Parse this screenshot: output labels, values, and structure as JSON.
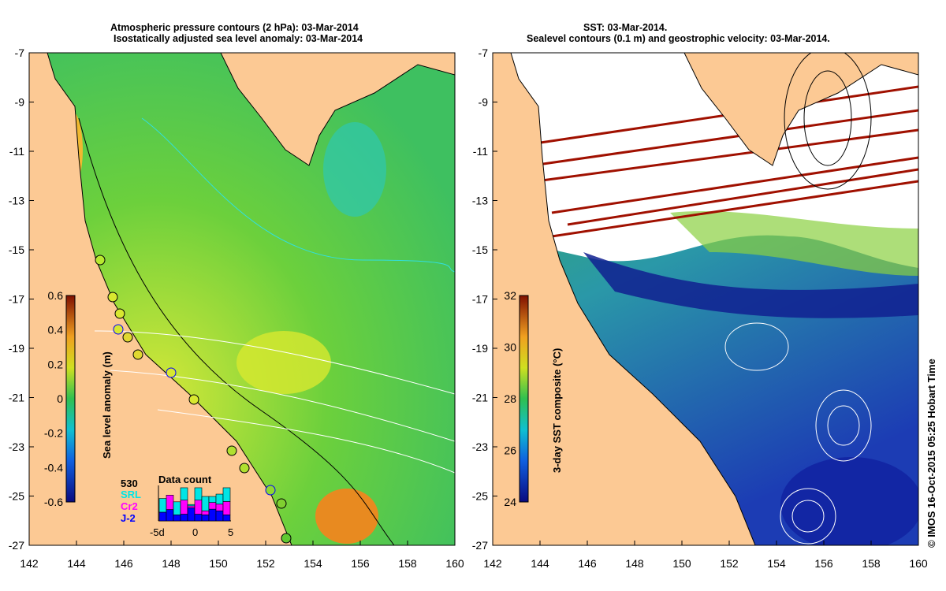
{
  "left_panel": {
    "title_line1": "Atmospheric pressure contours (2 hPa): 03-Mar-2014",
    "title_line2": "Isostatically adjusted sea level anomaly: 03-Mar-2014",
    "colorbar": {
      "label": "Sea level anomaly (m)",
      "ticks": [
        "0.6",
        "0.4",
        "0.2",
        "0",
        "-0.2",
        "-0.4",
        "-0.6"
      ],
      "range": [
        -0.6,
        0.6
      ]
    },
    "legend": {
      "max_count": "530",
      "series": [
        {
          "name": "SRL",
          "color": "#00e5e5"
        },
        {
          "name": "Cr2",
          "color": "#ff00ff"
        },
        {
          "name": "J-2",
          "color": "#0000ff"
        }
      ]
    },
    "data_count": {
      "title": "Data count",
      "x_ticks": [
        "-5d",
        "0",
        "5"
      ],
      "chart_data": {
        "type": "bar",
        "stacked": true,
        "ymax": 530,
        "series": [
          {
            "name": "J-2",
            "values": [
              130,
              170,
              90,
              100,
              195,
              100,
              90,
              175,
              150,
              90
            ]
          },
          {
            "name": "Cr2",
            "values": [
              0,
              215,
              0,
              210,
              30,
              210,
              60,
              100,
              100,
              200
            ]
          },
          {
            "name": "SRL",
            "values": [
              205,
              0,
              195,
              185,
              20,
              185,
              215,
              90,
              150,
              205
            ]
          }
        ]
      }
    }
  },
  "right_panel": {
    "title_line1": "SST: 03-Mar-2014.",
    "title_line2": "Sealevel contours (0.1 m) and geostrophic velocity: 03-Mar-2014.",
    "colorbar": {
      "label": "3-day SST composite (°C)",
      "ticks": [
        "32",
        "30",
        "28",
        "26",
        "24"
      ],
      "range": [
        24,
        32
      ]
    }
  },
  "axes": {
    "lon_ticks": [
      "142",
      "144",
      "146",
      "148",
      "150",
      "152",
      "154",
      "156",
      "158",
      "160"
    ],
    "lat_ticks": [
      "-7",
      "-9",
      "-11",
      "-13",
      "-15",
      "-17",
      "-19",
      "-21",
      "-23",
      "-25",
      "-27"
    ]
  },
  "credit": "© IMOS 16-Oct-2015 05:25 Hobart Time",
  "colors": {
    "land": "#fcc994",
    "sla_mid": "#5cc83a",
    "sst_warm": "#3cb43c",
    "sst_cool": "#1e64c8"
  }
}
